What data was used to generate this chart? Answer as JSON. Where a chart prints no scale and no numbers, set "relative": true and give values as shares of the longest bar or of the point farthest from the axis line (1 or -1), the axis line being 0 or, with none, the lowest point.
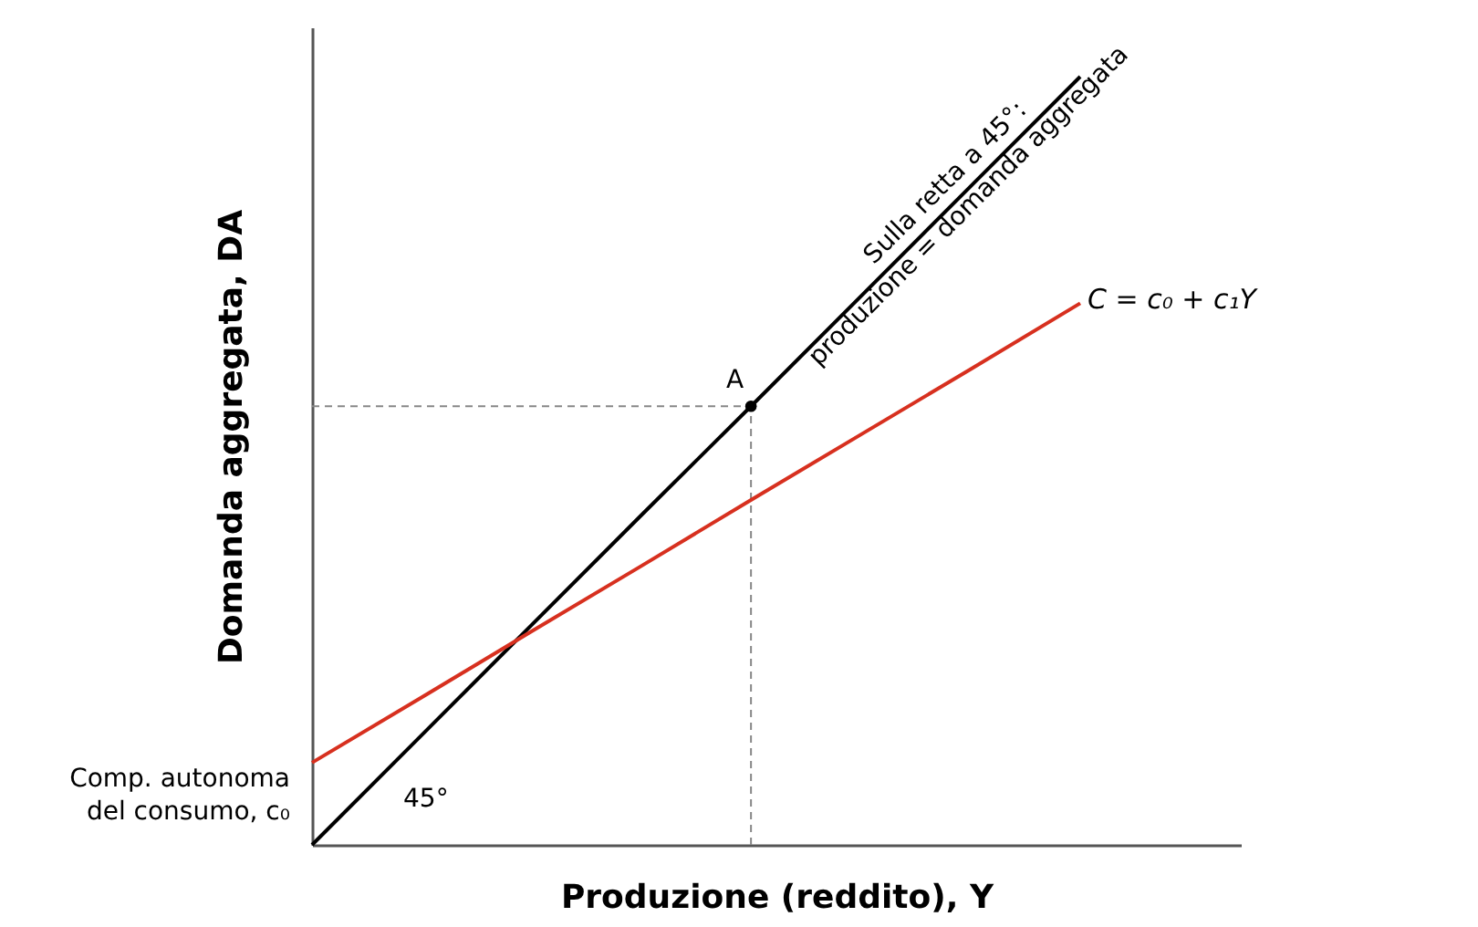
{
  "chart_data": {
    "type": "line",
    "relative": true,
    "xlabel": "Produzione (reddito), Y",
    "ylabel": "Domanda aggregata, DA",
    "categories": [
      null,
      null,
      null,
      null,
      null,
      null,
      null,
      null
    ],
    "marker": "none",
    "line_style": "solid",
    "ref_lines": [
      {
        "axis": "y",
        "value": 0.571,
        "color": "#888888",
        "line_style": "dashed"
      }
    ],
    "series": [
      {
        "color": "#000000",
        "values": [
          0,
          0.143,
          0.286,
          0.429,
          0.571,
          0.714,
          0.857,
          1.0
        ]
      },
      {
        "name": "C =  c₀ + c₁Y",
        "color": "#d7301f",
        "values": [
          0.107,
          0.192,
          0.278,
          0.363,
          0.449,
          0.534,
          0.619,
          0.705
        ]
      }
    ],
    "annotations": [
      "A",
      "Sulla retta a 45°:\nproduzione = domanda aggregata",
      "Comp. autonoma\ndel consumo, c₀",
      "45°"
    ]
  }
}
